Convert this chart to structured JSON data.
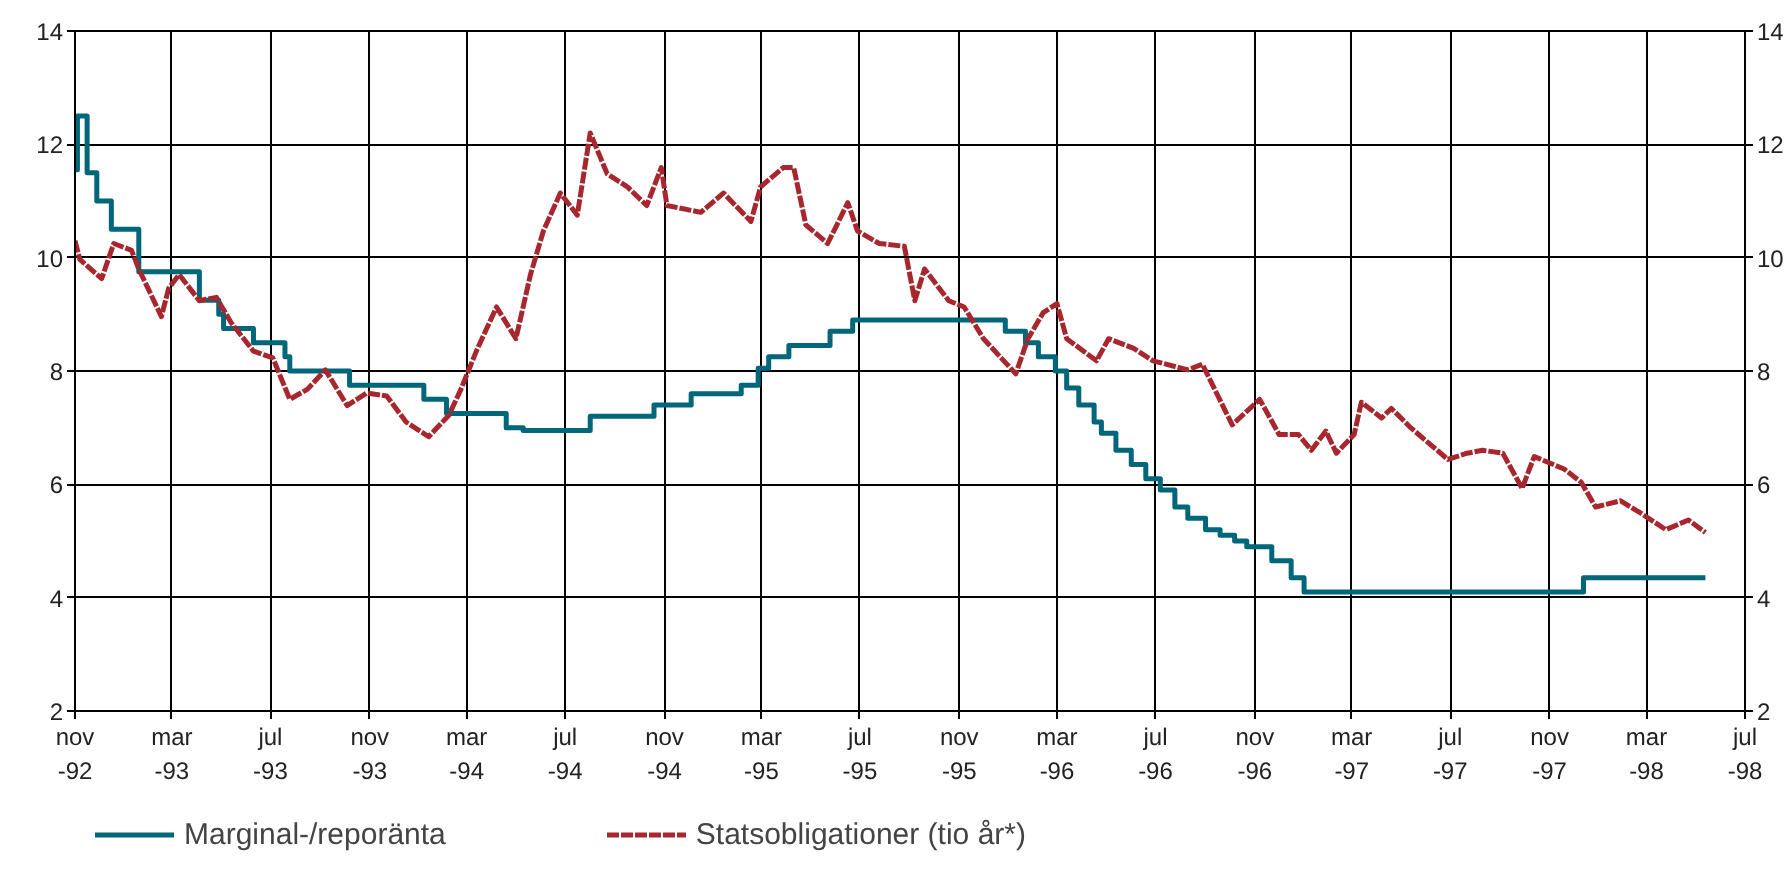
{
  "chart_data": {
    "type": "line",
    "xlim": [
      "1992-11-01",
      "1998-07-01"
    ],
    "ylim": [
      2,
      14
    ],
    "yticks": [
      2,
      4,
      6,
      8,
      10,
      12,
      14
    ],
    "y2lim": [
      2,
      14
    ],
    "y2ticks": [
      2,
      4,
      6,
      8,
      10,
      12,
      14
    ],
    "xticks": [
      {
        "value": "1992-11-01",
        "label": "nov\n-92"
      },
      {
        "value": "1993-03-01",
        "label": "mar\n-93"
      },
      {
        "value": "1993-07-01",
        "label": "jul\n-93"
      },
      {
        "value": "1993-11-01",
        "label": "nov\n-93"
      },
      {
        "value": "1994-03-01",
        "label": "mar\n-94"
      },
      {
        "value": "1994-07-01",
        "label": "jul\n-94"
      },
      {
        "value": "1994-11-01",
        "label": "nov\n-94"
      },
      {
        "value": "1995-03-01",
        "label": "mar\n-95"
      },
      {
        "value": "1995-07-01",
        "label": "jul\n-95"
      },
      {
        "value": "1995-11-01",
        "label": "nov\n-95"
      },
      {
        "value": "1996-03-01",
        "label": "mar\n-96"
      },
      {
        "value": "1996-07-01",
        "label": "jul\n-96"
      },
      {
        "value": "1996-11-01",
        "label": "nov\n-96"
      },
      {
        "value": "1997-03-01",
        "label": "mar\n-97"
      },
      {
        "value": "1997-07-01",
        "label": "jul\n-97"
      },
      {
        "value": "1997-11-01",
        "label": "nov\n-97"
      },
      {
        "value": "1998-03-01",
        "label": "mar\n-98"
      },
      {
        "value": "1998-07-01",
        "label": "jul\n-98"
      }
    ],
    "grid": true,
    "legend": "bottom",
    "marker": "none",
    "series": [
      {
        "name": "Marginal-/reporänta",
        "type": "step",
        "color": "#00667a",
        "line_style": "solid",
        "x": [
          "1992-11-01",
          "1992-11-04",
          "1992-11-16",
          "1992-11-28",
          "1992-12-16",
          "1993-01-19",
          "1993-04-04",
          "1993-04-28",
          "1993-05-04",
          "1993-06-10",
          "1993-07-19",
          "1993-07-25",
          "1993-10-07",
          "1994-01-07",
          "1994-02-04",
          "1994-04-19",
          "1994-05-10",
          "1994-08-01",
          "1994-10-19",
          "1994-12-04",
          "1995-02-04",
          "1995-02-25",
          "1995-03-10",
          "1995-04-04",
          "1995-05-25",
          "1995-06-22",
          "1995-12-28",
          "1996-01-22",
          "1996-02-07",
          "1996-02-28",
          "1996-03-13",
          "1996-03-28",
          "1996-04-16",
          "1996-04-25",
          "1996-05-13",
          "1996-06-01",
          "1996-06-19",
          "1996-07-07",
          "1996-07-25",
          "1996-08-10",
          "1996-09-01",
          "1996-09-19",
          "1996-10-07",
          "1996-10-22",
          "1996-11-22",
          "1996-12-16",
          "1997-01-01",
          "1997-12-13",
          "1998-05-13"
        ],
        "values": [
          11.55,
          12.5,
          11.5,
          11.0,
          10.5,
          9.75,
          9.25,
          9.0,
          8.75,
          8.5,
          8.25,
          8.0,
          7.75,
          7.5,
          7.25,
          7.0,
          6.95,
          7.2,
          7.4,
          7.6,
          7.75,
          8.05,
          8.25,
          8.45,
          8.7,
          8.9,
          8.7,
          8.5,
          8.25,
          8.0,
          7.7,
          7.4,
          7.1,
          6.9,
          6.6,
          6.35,
          6.1,
          5.9,
          5.6,
          5.4,
          5.2,
          5.1,
          5.0,
          4.9,
          4.65,
          4.35,
          4.1,
          4.35,
          4.35
        ]
      },
      {
        "name": "Statsobligationer (tio år*)",
        "color": "#a8272e",
        "line_style": "dashed",
        "x": [
          "1992-11-01",
          "1992-11-07",
          "1992-12-04",
          "1992-12-19",
          "1993-01-10",
          "1993-01-19",
          "1993-02-16",
          "1993-02-25",
          "1993-03-10",
          "1993-04-04",
          "1993-04-25",
          "1993-05-13",
          "1993-06-10",
          "1993-07-04",
          "1993-07-25",
          "1993-08-16",
          "1993-09-07",
          "1993-10-04",
          "1993-10-28",
          "1993-11-22",
          "1993-12-16",
          "1994-01-13",
          "1994-02-07",
          "1994-02-22",
          "1994-03-13",
          "1994-04-07",
          "1994-05-01",
          "1994-05-19",
          "1994-06-04",
          "1994-06-25",
          "1994-07-16",
          "1994-08-01",
          "1994-08-22",
          "1994-09-16",
          "1994-10-10",
          "1994-10-28",
          "1994-11-04",
          "1994-12-16",
          "1995-01-13",
          "1995-02-16",
          "1995-02-28",
          "1995-03-28",
          "1995-04-10",
          "1995-04-25",
          "1995-05-22",
          "1995-06-16",
          "1995-06-28",
          "1995-07-25",
          "1995-08-25",
          "1995-09-07",
          "1995-09-19",
          "1995-10-19",
          "1995-11-07",
          "1995-12-01",
          "1996-01-10",
          "1996-01-25",
          "1996-02-13",
          "1996-03-01",
          "1996-03-13",
          "1996-04-19",
          "1996-05-04",
          "1996-06-04",
          "1996-06-28",
          "1996-08-10",
          "1996-08-28",
          "1996-10-04",
          "1996-11-07",
          "1996-12-01",
          "1996-12-25",
          "1997-01-10",
          "1997-01-28",
          "1997-02-10",
          "1997-03-04",
          "1997-03-13",
          "1997-04-07",
          "1997-04-19",
          "1997-05-13",
          "1997-06-28",
          "1997-07-22",
          "1997-08-10",
          "1997-09-04",
          "1997-09-28",
          "1997-10-13",
          "1997-11-19",
          "1997-12-10",
          "1997-12-28",
          "1998-01-28",
          "1998-02-22",
          "1998-03-25",
          "1998-04-22",
          "1998-05-13"
        ],
        "values": [
          10.3,
          9.97,
          9.63,
          10.25,
          10.13,
          9.8,
          8.96,
          9.46,
          9.7,
          9.24,
          9.3,
          8.86,
          8.35,
          8.23,
          7.5,
          7.68,
          8.02,
          7.39,
          7.61,
          7.56,
          7.1,
          6.84,
          7.22,
          7.68,
          8.35,
          9.13,
          8.57,
          9.7,
          10.47,
          11.14,
          10.75,
          12.2,
          11.48,
          11.25,
          10.92,
          11.59,
          10.92,
          10.8,
          11.14,
          10.64,
          11.25,
          11.59,
          11.59,
          10.58,
          10.25,
          10.97,
          10.47,
          10.25,
          10.2,
          9.24,
          9.8,
          9.24,
          9.13,
          8.57,
          7.95,
          8.57,
          9.03,
          9.19,
          8.57,
          8.18,
          8.57,
          8.4,
          8.18,
          8.02,
          8.12,
          7.05,
          7.5,
          6.88,
          6.88,
          6.6,
          6.94,
          6.55,
          6.88,
          7.45,
          7.17,
          7.34,
          7.0,
          6.44,
          6.55,
          6.6,
          6.55,
          5.93,
          6.49,
          6.27,
          6.04,
          5.6,
          5.71,
          5.49,
          5.2,
          5.37,
          5.15
        ]
      }
    ]
  }
}
